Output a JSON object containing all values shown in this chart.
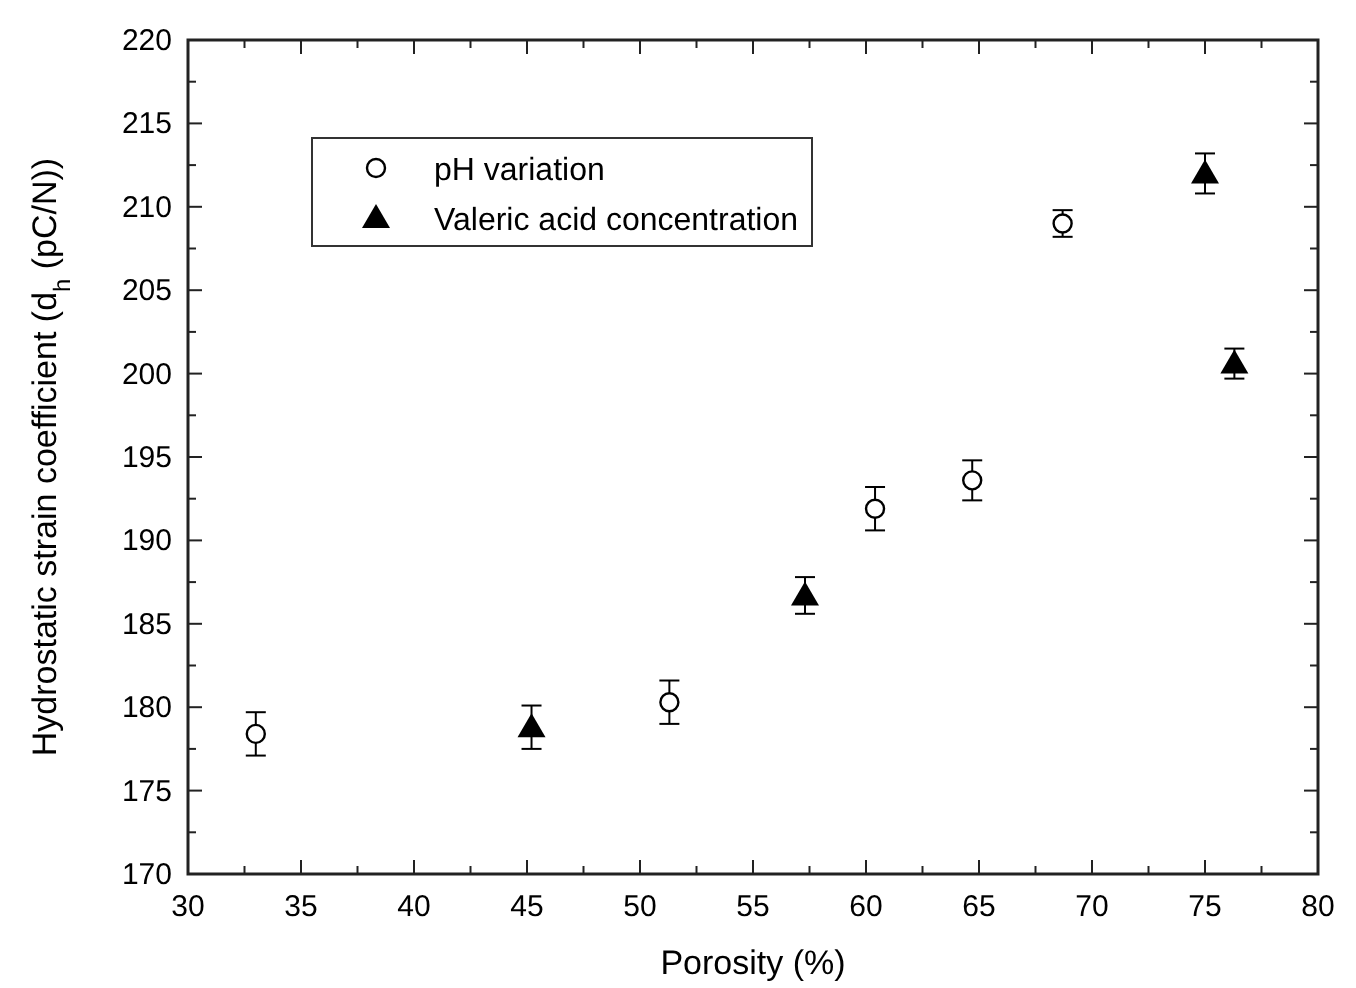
{
  "chart_data": {
    "type": "scatter",
    "xlabel": "Porosity (%)",
    "ylabel": "Hydrostatic strain coefficient (d$_{h}$ (pC/N))",
    "xlim": [
      30,
      80
    ],
    "ylim": [
      170,
      220
    ],
    "xticks": [
      30,
      {
        "value": 32.5,
        "label": null
      },
      35,
      {
        "value": 37.5,
        "label": null
      },
      40,
      {
        "value": 42.5,
        "label": null
      },
      45,
      {
        "value": 47.5,
        "label": null
      },
      50,
      {
        "value": 52.5,
        "label": null
      },
      55,
      {
        "value": 57.5,
        "label": null
      },
      60,
      {
        "value": 62.5,
        "label": null
      },
      65,
      {
        "value": 67.5,
        "label": null
      },
      70,
      {
        "value": 72.5,
        "label": null
      },
      75,
      {
        "value": 77.5,
        "label": null
      },
      80
    ],
    "yticks": [
      170,
      {
        "value": 172.5,
        "label": null
      },
      175,
      {
        "value": 177.5,
        "label": null
      },
      180,
      {
        "value": 182.5,
        "label": null
      },
      185,
      {
        "value": 187.5,
        "label": null
      },
      190,
      {
        "value": 192.5,
        "label": null
      },
      195,
      {
        "value": 197.5,
        "label": null
      },
      200,
      {
        "value": 202.5,
        "label": null
      },
      205,
      {
        "value": 207.5,
        "label": null
      },
      210,
      {
        "value": 212.5,
        "label": null
      },
      215,
      {
        "value": 217.5,
        "label": null
      },
      220
    ],
    "grid": false,
    "legend": "top left",
    "series": [
      {
        "name": "pH variation",
        "color": "#000000",
        "marker": "circle",
        "x": [
          33,
          51.3,
          60.4,
          64.7,
          68.7
        ],
        "values": [
          178.4,
          180.3,
          191.9,
          193.6,
          209
        ],
        "errors": [
          1.3,
          1.3,
          1.3,
          1.2,
          0.8
        ]
      },
      {
        "name": "Valeric acid concentration",
        "color": "#000000",
        "marker": "triangle",
        "x": [
          45.2,
          57.3,
          75,
          76.3
        ],
        "values": [
          178.8,
          186.7,
          212,
          200.6
        ],
        "errors": [
          1.3,
          1.1,
          1.2,
          0.9
        ]
      }
    ]
  }
}
